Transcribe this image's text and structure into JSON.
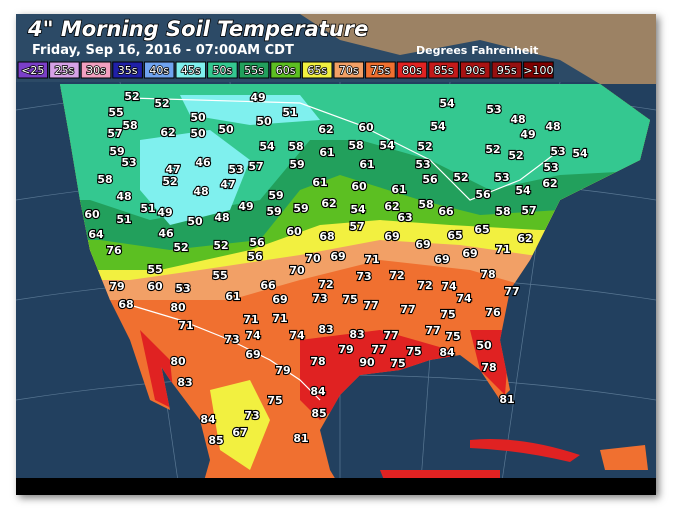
{
  "header": {
    "title": "4\" Morning Soil Temperature",
    "subtitle": "Friday, Sep 16, 2016 - 07:00AM CDT",
    "units": "Degrees Fahrenheit"
  },
  "legend": [
    {
      "label": "<25",
      "color": "#7b3fc8"
    },
    {
      "label": "25s",
      "color": "#d6a2e6"
    },
    {
      "label": "30s",
      "color": "#f2a0c0"
    },
    {
      "label": "35s",
      "color": "#2020a8"
    },
    {
      "label": "40s",
      "color": "#70a4f0"
    },
    {
      "label": "45s",
      "color": "#7ff0ee"
    },
    {
      "label": "50s",
      "color": "#34c890"
    },
    {
      "label": "55s",
      "color": "#22a05c"
    },
    {
      "label": "60s",
      "color": "#5cbf22"
    },
    {
      "label": "65s",
      "color": "#f2f040"
    },
    {
      "label": "70s",
      "color": "#f2a066"
    },
    {
      "label": "75s",
      "color": "#f07030"
    },
    {
      "label": "80s",
      "color": "#e02222"
    },
    {
      "label": "85s",
      "color": "#c41a1a"
    },
    {
      "label": "90s",
      "color": "#a81212"
    },
    {
      "label": "95s",
      "color": "#961010"
    },
    {
      "label": ">100",
      "color": "#7e0000"
    }
  ],
  "stations": [
    52,
    52,
    49,
    55,
    58,
    51,
    50,
    50,
    50,
    62,
    50,
    57,
    62,
    60,
    54,
    54,
    53,
    48,
    49,
    48,
    54,
    58,
    61,
    58,
    54,
    52,
    59,
    53,
    46,
    53,
    57,
    59,
    61,
    53,
    52,
    52,
    53,
    54,
    53,
    58,
    52,
    47,
    47,
    48,
    49,
    59,
    61,
    60,
    61,
    56,
    52,
    56,
    53,
    54,
    62,
    48,
    51,
    49,
    50,
    48,
    59,
    59,
    62,
    54,
    62,
    63,
    58,
    66,
    58,
    57,
    60,
    51,
    64,
    46,
    52,
    52,
    56,
    60,
    68,
    57,
    69,
    69,
    65,
    65,
    62,
    76,
    56,
    70,
    70,
    69,
    71,
    69,
    69,
    71,
    55,
    55,
    73,
    72,
    72,
    78,
    79,
    60,
    53,
    66,
    72,
    74,
    77,
    68,
    80,
    61,
    69,
    73,
    75,
    77,
    74,
    77,
    76,
    71,
    71,
    71,
    74,
    74,
    83,
    83,
    77,
    77,
    75,
    75,
    73,
    77,
    79,
    75,
    84,
    50,
    69,
    80,
    78,
    90,
    75,
    78,
    79,
    83,
    84,
    75,
    81,
    85,
    84,
    73,
    85,
    67,
    81
  ]
}
